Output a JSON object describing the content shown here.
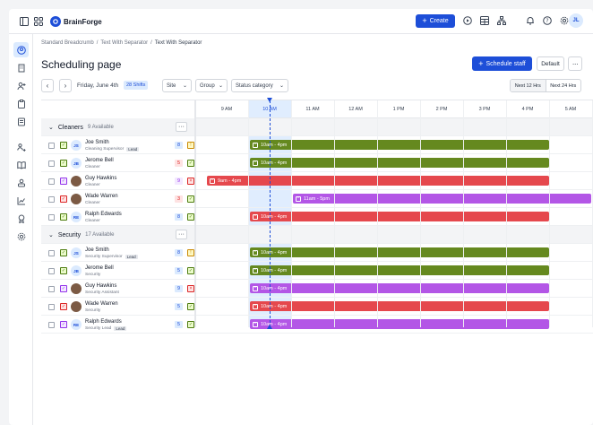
{
  "app": {
    "brand": "BrainForge",
    "create_label": "Create",
    "user_initials": "JL"
  },
  "breadcrumb": [
    "Standard Breadcrumb",
    "Text With Separator",
    "Text With Separator"
  ],
  "breadcrumb_sep": "/",
  "page_title": "Scheduling page",
  "actions": {
    "schedule_staff": "Schedule staff",
    "default": "Default",
    "more": "···"
  },
  "toolbar": {
    "date": "Friday, June 4th",
    "shifts": "28 Shifts",
    "filters": [
      "Site",
      "Group",
      "Status category"
    ],
    "range_options": [
      "Next 12 Hrs",
      "Next 24 Hrs"
    ],
    "range_selected": "Next 12 Hrs"
  },
  "hours": [
    "9 AM",
    "10 AM",
    "11 AM",
    "12 AM",
    "1 PM",
    "2 PM",
    "3 PM",
    "4 PM",
    "5 AM"
  ],
  "current_hour": "10 AM",
  "groups": [
    {
      "name": "Cleaners",
      "available": "9 Available",
      "people": [
        {
          "initials": "JS",
          "name": "Joe Smith",
          "role": "Cleaning Supervisor",
          "lead": "Lead",
          "count": "8",
          "count_color": "blue",
          "status": "green",
          "flag": "yellow",
          "shift": "10am - 4pm",
          "shift_color": "green",
          "shift_start": 10,
          "shift_end": 16
        },
        {
          "initials": "JB",
          "name": "Jerome Bell",
          "role": "Cleaner",
          "lead": "",
          "count": "5",
          "count_color": "red",
          "status": "green",
          "flag": "green",
          "shift": "10am - 4pm",
          "shift_color": "green",
          "shift_start": 10,
          "shift_end": 16
        },
        {
          "initials": "GH",
          "name": "Guy Hawkins",
          "role": "Cleaner",
          "lead": "",
          "count": "9",
          "count_color": "purple",
          "status": "purple",
          "flag": "red",
          "shift": "9am - 4pm",
          "shift_color": "red",
          "shift_start": 9,
          "shift_end": 16,
          "photo": true
        },
        {
          "initials": "WW",
          "name": "Wade Warren",
          "role": "Cleaner",
          "lead": "",
          "count": "3",
          "count_color": "red",
          "status": "red",
          "flag": "green",
          "shift": "11am - 5pm",
          "shift_color": "purple",
          "shift_start": 11,
          "shift_end": 17,
          "photo": true
        },
        {
          "initials": "RE",
          "name": "Ralph Edwards",
          "role": "Cleaner",
          "lead": "",
          "count": "8",
          "count_color": "blue",
          "status": "green",
          "flag": "green",
          "shift": "10am - 4pm",
          "shift_color": "red",
          "shift_start": 10,
          "shift_end": 16
        }
      ]
    },
    {
      "name": "Security",
      "available": "17 Available",
      "people": [
        {
          "initials": "JS",
          "name": "Joe Smith",
          "role": "Security Supervisor",
          "lead": "Lead",
          "count": "8",
          "count_color": "blue",
          "status": "green",
          "flag": "yellow",
          "shift": "10am - 4pm",
          "shift_color": "green",
          "shift_start": 10,
          "shift_end": 16
        },
        {
          "initials": "JB",
          "name": "Jerome Bell",
          "role": "Security",
          "lead": "",
          "count": "5",
          "count_color": "blue",
          "status": "green",
          "flag": "green",
          "shift": "10am - 4pm",
          "shift_color": "green",
          "shift_start": 10,
          "shift_end": 16
        },
        {
          "initials": "GH",
          "name": "Guy Hawkins",
          "role": "Security Assistant",
          "lead": "",
          "count": "9",
          "count_color": "blue",
          "status": "purple",
          "flag": "red",
          "shift": "10am - 4pm",
          "shift_color": "purple",
          "shift_start": 10,
          "shift_end": 16,
          "photo": true
        },
        {
          "initials": "WW",
          "name": "Wade Warren",
          "role": "Security",
          "lead": "",
          "count": "5",
          "count_color": "blue",
          "status": "red",
          "flag": "green",
          "shift": "10am - 4pm",
          "shift_color": "red",
          "shift_start": 10,
          "shift_end": 16,
          "photo": true
        },
        {
          "initials": "RE",
          "name": "Ralph Edwards",
          "role": "Security Lead",
          "lead": "Lead",
          "count": "5",
          "count_color": "blue",
          "status": "purple",
          "flag": "green",
          "shift": "10am - 4pm",
          "shift_color": "purple",
          "shift_start": 10,
          "shift_end": 16
        }
      ]
    }
  ],
  "colors": {
    "accent": "#1d4ed8",
    "green": "#65891f",
    "red": "#e5484d",
    "purple": "#b356e6"
  },
  "sidebar_icons": [
    "user-circle-icon",
    "building-icon",
    "user-plus-icon",
    "clipboard-icon",
    "file-list-icon",
    "users-icon",
    "book-icon",
    "team-icon",
    "chart-icon",
    "badge-icon",
    "settings-icon"
  ]
}
